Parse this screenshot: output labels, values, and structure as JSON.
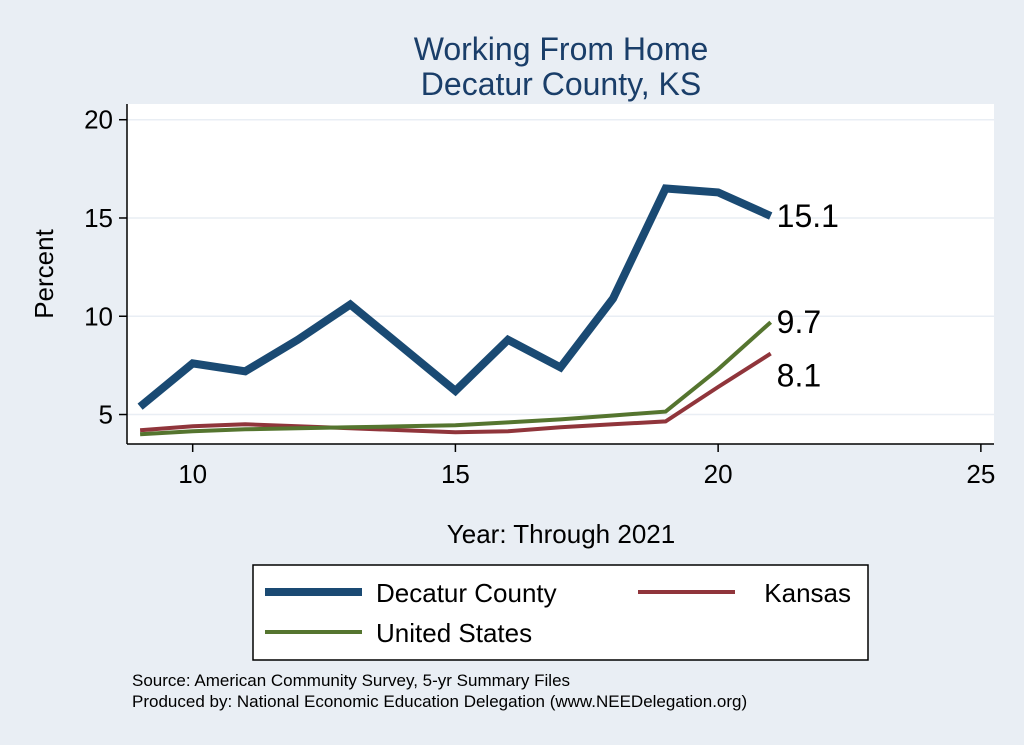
{
  "chart_data": {
    "type": "line",
    "title": [
      "Working From Home",
      "Decatur County, KS"
    ],
    "xlabel": "Year: Through 2021",
    "ylabel": "Percent",
    "xlim": [
      8.75,
      25.25
    ],
    "ylim": [
      3.5,
      20.8
    ],
    "xticks": [
      10,
      15,
      20,
      25
    ],
    "yticks": [
      5,
      10,
      15,
      20
    ],
    "grid": true,
    "x": [
      9,
      10,
      11,
      12,
      13,
      14,
      15,
      16,
      17,
      18,
      19,
      20,
      21
    ],
    "series": [
      {
        "name": "Decatur County",
        "color": "#1a4a73",
        "values": [
          5.4,
          7.6,
          7.2,
          8.8,
          10.6,
          8.4,
          6.2,
          8.8,
          7.4,
          10.9,
          16.5,
          16.3,
          15.1
        ],
        "end_label": "15.1"
      },
      {
        "name": "Kansas",
        "color": "#90353b",
        "values": [
          4.2,
          4.4,
          4.5,
          4.4,
          4.3,
          4.2,
          4.1,
          4.15,
          4.35,
          4.5,
          4.65,
          6.4,
          8.1
        ],
        "end_label": "8.1"
      },
      {
        "name": "United States",
        "color": "#55752f",
        "values": [
          4.0,
          4.15,
          4.25,
          4.3,
          4.35,
          4.4,
          4.45,
          4.6,
          4.75,
          4.95,
          5.15,
          7.3,
          9.7
        ],
        "end_label": "9.7"
      }
    ],
    "legend": {
      "position": "bottom",
      "entries": [
        "Decatur County",
        "Kansas",
        "United States"
      ]
    }
  },
  "source": {
    "line1": "Source: American Community Survey, 5-yr Summary Files",
    "line2": "Produced by: National Economic Education Delegation (www.NEEDelegation.org)"
  }
}
